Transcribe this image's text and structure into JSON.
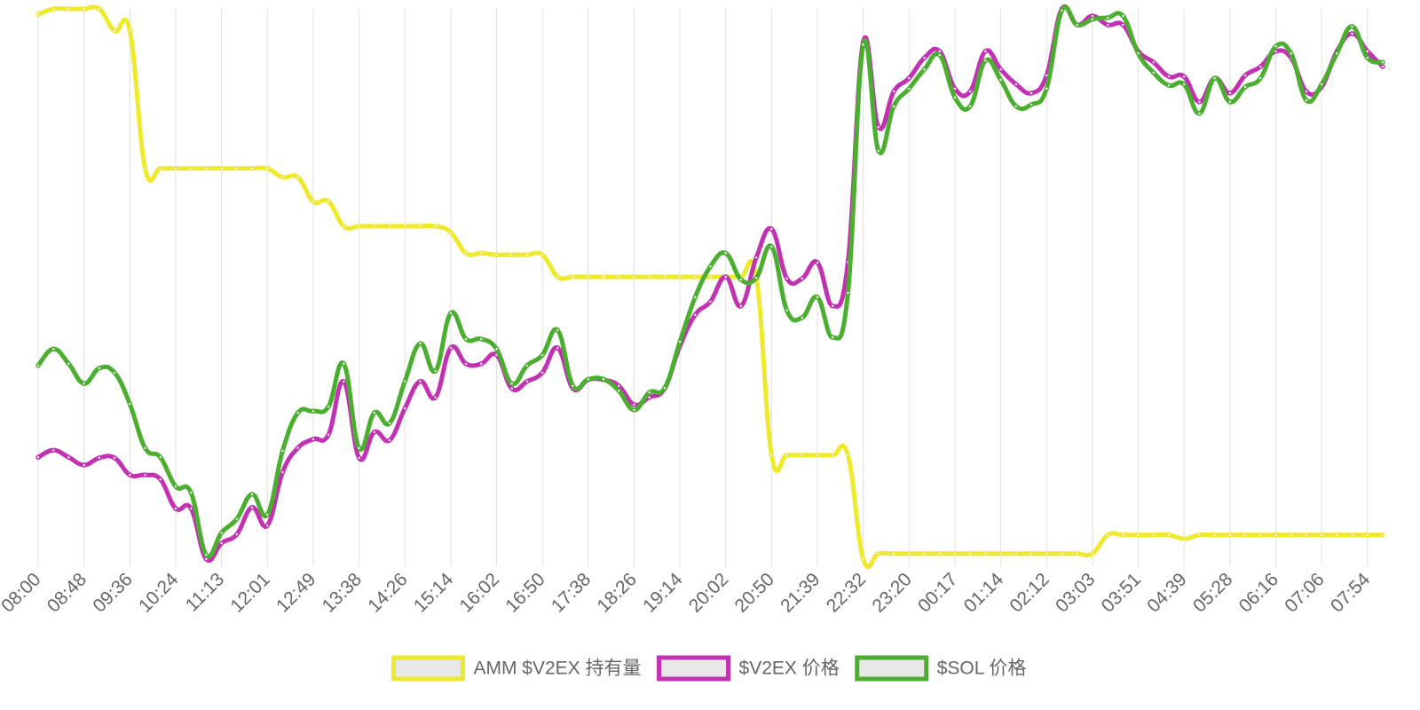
{
  "chart_data": {
    "type": "line",
    "categories": [
      "08:00",
      null,
      null,
      "08:48",
      null,
      null,
      "09:36",
      null,
      null,
      "10:24",
      null,
      null,
      "11:13",
      null,
      null,
      "12:01",
      null,
      null,
      "12:49",
      null,
      null,
      "13:38",
      null,
      null,
      "14:26",
      null,
      null,
      "15:14",
      null,
      null,
      "16:02",
      null,
      null,
      "16:50",
      null,
      null,
      "17:38",
      null,
      null,
      "18:26",
      null,
      null,
      "19:14",
      null,
      null,
      "20:02",
      null,
      null,
      "20:50",
      null,
      null,
      "21:39",
      null,
      null,
      "22:32",
      null,
      null,
      "23:20",
      null,
      null,
      "00:17",
      null,
      null,
      "01:14",
      null,
      null,
      "02:12",
      null,
      null,
      "03:03",
      null,
      null,
      "03:51",
      null,
      null,
      "04:39",
      null,
      null,
      "05:28",
      null,
      null,
      "06:16",
      null,
      null,
      "07:06",
      null,
      null,
      "07:54",
      null
    ],
    "series": [
      {
        "name": "AMM $V2EX 持有量",
        "color": "#efe92b",
        "values": [
          99,
          100,
          100,
          100,
          100,
          96,
          96,
          71,
          71,
          71,
          71,
          71,
          71,
          71,
          71,
          71,
          69.4,
          69.4,
          65,
          65,
          60.5,
          60.5,
          60.5,
          60.5,
          60.5,
          60.5,
          60.5,
          59.4,
          55.6,
          55.6,
          55.3,
          55.3,
          55.3,
          55.3,
          51.3,
          51.3,
          51.3,
          51.3,
          51.3,
          51.3,
          51.3,
          51.3,
          51.3,
          51.3,
          51.3,
          51.3,
          51.3,
          51.3,
          18.9,
          18.9,
          18.9,
          18.9,
          18.9,
          18.9,
          0,
          1,
          1,
          1,
          1,
          1,
          1,
          1,
          1,
          1,
          1,
          1,
          1,
          1,
          1,
          1,
          4.4,
          4.4,
          4.4,
          4.4,
          4.4,
          3.7,
          4.4,
          4.4,
          4.4,
          4.4,
          4.4,
          4.4,
          4.4,
          4.4,
          4.4,
          4.4,
          4.4,
          4.4,
          4.4
        ]
      },
      {
        "name": "$V2EX 价格",
        "color": "#c331b3",
        "values": [
          18.5,
          19.8,
          18.5,
          17.1,
          18.4,
          18.4,
          15.3,
          15.3,
          14.5,
          9.2,
          9.2,
          0,
          2.9,
          4.5,
          9.4,
          6.1,
          15.8,
          20.2,
          21.8,
          22.6,
          32.3,
          18.4,
          23.1,
          21.6,
          27.4,
          32.3,
          29.4,
          38.4,
          35.5,
          35.5,
          37.1,
          31,
          32.3,
          33.9,
          38.4,
          31,
          32.6,
          32.6,
          31.5,
          28.1,
          29.4,
          31,
          38.7,
          44.4,
          46.8,
          51.3,
          46,
          54.8,
          60,
          51,
          51,
          53.9,
          46,
          54,
          94,
          78.5,
          85,
          87.4,
          91.1,
          92.3,
          85.5,
          85,
          92.3,
          89,
          86.3,
          84.7,
          87.9,
          100,
          97.1,
          98.7,
          97.1,
          97.1,
          92.3,
          90.3,
          87.7,
          87.7,
          83.1,
          87.4,
          84.7,
          87.9,
          89.5,
          92.3,
          91.1,
          85,
          85.8,
          92.3,
          95.5,
          92.3,
          89.5
        ]
      },
      {
        "name": "$SOL 价格",
        "color": "#4aae2f",
        "values": [
          35.2,
          38.2,
          35.5,
          31.9,
          34.7,
          33.9,
          28.2,
          20.2,
          18.5,
          13.2,
          12.1,
          0.8,
          4.8,
          7.3,
          11.8,
          8.1,
          19.7,
          26.6,
          26.9,
          27.7,
          35.5,
          20.2,
          26.6,
          24.7,
          32.3,
          39.2,
          34.2,
          44.7,
          40,
          40,
          38.2,
          31.9,
          35.2,
          37.1,
          41.6,
          31.5,
          32.7,
          32.7,
          30.6,
          27.1,
          30.3,
          31.1,
          39.5,
          47.6,
          53.2,
          55.6,
          50.8,
          51.1,
          56.8,
          45.2,
          43.9,
          47.6,
          40.3,
          48.4,
          93.5,
          74.2,
          82.3,
          85.5,
          89,
          91.6,
          83.9,
          82.3,
          90.6,
          87.1,
          82.3,
          82.6,
          85.5,
          99.7,
          97.1,
          98.1,
          98.4,
          98.7,
          91.9,
          88.4,
          86.1,
          86.3,
          81,
          87.4,
          83.1,
          85.8,
          87.4,
          93.2,
          91.9,
          83.4,
          86.3,
          91.9,
          96.8,
          91.1,
          90.3
        ]
      }
    ],
    "ylim": [
      0,
      100
    ],
    "grid": true,
    "legend": "bottom"
  }
}
